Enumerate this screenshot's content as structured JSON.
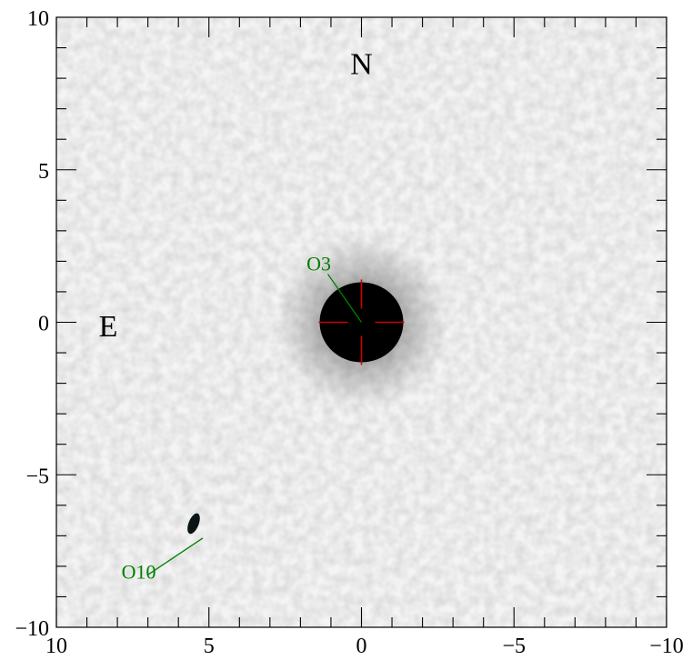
{
  "chart_data": {
    "type": "scatter",
    "title": "",
    "xlabel": "",
    "ylabel": "",
    "xlim": [
      10,
      -10
    ],
    "ylim": [
      -10,
      10
    ],
    "x_ticks": [
      10,
      5,
      0,
      -5,
      -10
    ],
    "y_ticks": [
      10,
      5,
      0,
      -5,
      -10
    ],
    "x_tick_labels": [
      "10",
      "5",
      "0",
      "−5",
      "−10"
    ],
    "y_tick_labels": [
      "10",
      "5",
      "0",
      "−5",
      "−10"
    ],
    "minor_tick_step": 1,
    "grid": false,
    "background": "grayscale noise image",
    "directions": {
      "north": "N",
      "east": "E"
    },
    "directions_pos": {
      "north": {
        "x": 0,
        "y": 8.5
      },
      "east": {
        "x": 8.3,
        "y": -0.1
      }
    },
    "crosshair": {
      "x": 0,
      "y": 0,
      "color": "#cc0000"
    },
    "sources": [
      {
        "name": "O3",
        "x": 0,
        "y": 0,
        "label_x": 1.4,
        "label_y": 1.7,
        "color": "#008000"
      },
      {
        "name": "O10",
        "x": 5.5,
        "y": -6.6,
        "label_x": 7.3,
        "label_y": -8.4,
        "color": "#008000"
      }
    ],
    "colors": {
      "label": "#008000",
      "marker": "#cc0000",
      "source": "#000000"
    }
  }
}
